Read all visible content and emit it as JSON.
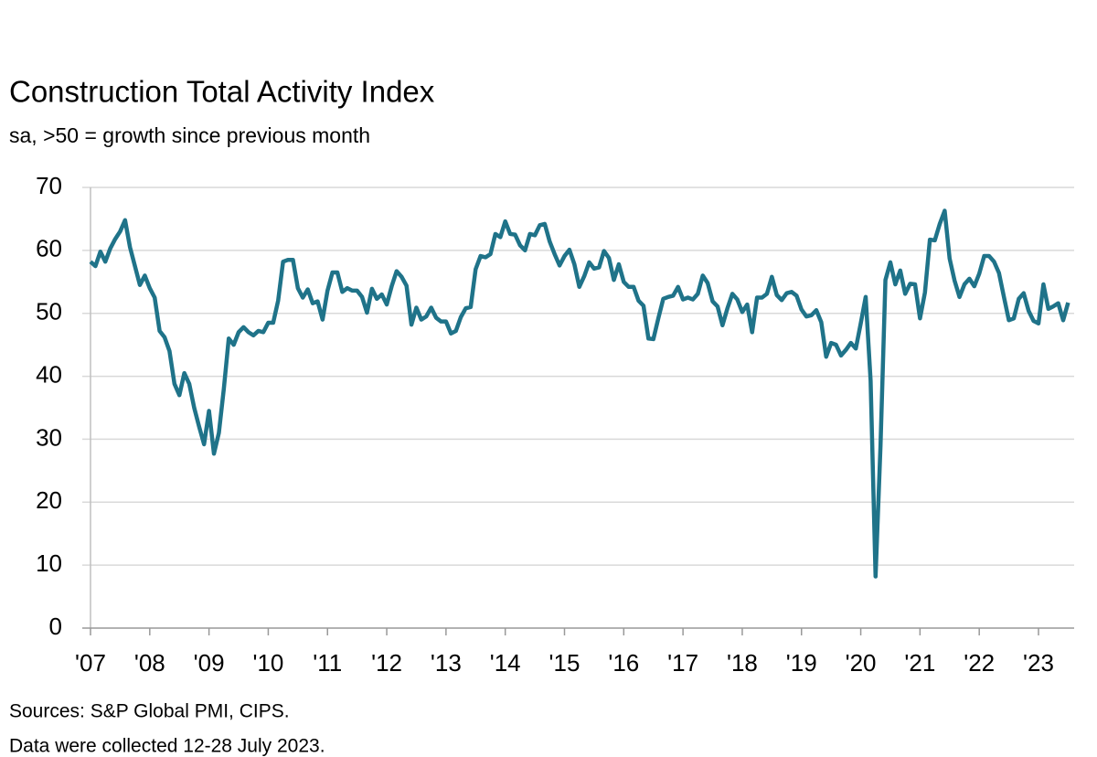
{
  "chart_data": {
    "type": "line",
    "title": "Construction Total Activity Index",
    "subtitle": "sa, >50 = growth since previous month",
    "notes": [
      "Sources: S&P Global PMI, CIPS.",
      "Data were collected 12-28 July 2023."
    ],
    "color": "#1f7389",
    "grid": true,
    "ylim": [
      0,
      70
    ],
    "yticks": [
      0,
      10,
      20,
      30,
      40,
      50,
      60,
      70
    ],
    "categories": [
      "'07",
      null,
      null,
      null,
      null,
      null,
      null,
      null,
      null,
      null,
      null,
      null,
      "'08",
      null,
      null,
      null,
      null,
      null,
      null,
      null,
      null,
      null,
      null,
      null,
      "'09",
      null,
      null,
      null,
      null,
      null,
      null,
      null,
      null,
      null,
      null,
      null,
      "'10",
      null,
      null,
      null,
      null,
      null,
      null,
      null,
      null,
      null,
      null,
      null,
      "'11",
      null,
      null,
      null,
      null,
      null,
      null,
      null,
      null,
      null,
      null,
      null,
      "'12",
      null,
      null,
      null,
      null,
      null,
      null,
      null,
      null,
      null,
      null,
      null,
      "'13",
      null,
      null,
      null,
      null,
      null,
      null,
      null,
      null,
      null,
      null,
      null,
      "'14",
      null,
      null,
      null,
      null,
      null,
      null,
      null,
      null,
      null,
      null,
      null,
      "'15",
      null,
      null,
      null,
      null,
      null,
      null,
      null,
      null,
      null,
      null,
      null,
      "'16",
      null,
      null,
      null,
      null,
      null,
      null,
      null,
      null,
      null,
      null,
      null,
      "'17",
      null,
      null,
      null,
      null,
      null,
      null,
      null,
      null,
      null,
      null,
      null,
      "'18",
      null,
      null,
      null,
      null,
      null,
      null,
      null,
      null,
      null,
      null,
      null,
      "'19",
      null,
      null,
      null,
      null,
      null,
      null,
      null,
      null,
      null,
      null,
      null,
      "'20",
      null,
      null,
      null,
      null,
      null,
      null,
      null,
      null,
      null,
      null,
      null,
      "'21",
      null,
      null,
      null,
      null,
      null,
      null,
      null,
      null,
      null,
      null,
      null,
      "'22",
      null,
      null,
      null,
      null,
      null,
      null,
      null,
      null,
      null,
      null,
      null,
      "'23",
      null,
      null,
      null,
      null,
      null,
      null
    ],
    "values": [
      58.2,
      57.5,
      59.8,
      58.2,
      60.3,
      61.8,
      63,
      64.8,
      60.5,
      57.5,
      54.5,
      56,
      54,
      52.5,
      47.2,
      46.2,
      44,
      38.8,
      37,
      40.5,
      38.8,
      35,
      32,
      29.2,
      34.5,
      27.7,
      31,
      38,
      46,
      45,
      47,
      47.8,
      47,
      46.5,
      47.2,
      47,
      48.5,
      48.5,
      52,
      58.2,
      58.5,
      58.5,
      54,
      52.5,
      53.8,
      51.6,
      51.9,
      49,
      53.6,
      56.5,
      56.5,
      53.4,
      54,
      53.6,
      53.6,
      52.6,
      50.1,
      53.9,
      52.3,
      53,
      51.4,
      54.3,
      56.7,
      55.8,
      54.4,
      48.2,
      50.9,
      49,
      49.5,
      50.9,
      49.3,
      48.7,
      48.7,
      46.8,
      47.2,
      49.4,
      50.8,
      51,
      57,
      59.1,
      58.9,
      59.4,
      62.6,
      62.1,
      64.6,
      62.6,
      62.5,
      60.8,
      60,
      62.6,
      62.4,
      64,
      64.2,
      61.4,
      59.4,
      57.6,
      59.1,
      60.1,
      57.8,
      54.2,
      55.9,
      58.1,
      57.1,
      57.3,
      59.9,
      58.8,
      55.3,
      57.8,
      55,
      54.2,
      54.2,
      52,
      51.2,
      46,
      45.9,
      49.2,
      52.3,
      52.6,
      52.8,
      54.2,
      52.2,
      52.5,
      52.2,
      53.1,
      56,
      54.8,
      51.9,
      51.1,
      48.1,
      50.8,
      53.1,
      52.2,
      50.2,
      51.4,
      47,
      52.5,
      52.5,
      53.1,
      55.8,
      52.9,
      52.1,
      53.2,
      53.4,
      52.8,
      50.6,
      49.5,
      49.7,
      50.5,
      48.6,
      43.1,
      45.3,
      45,
      43.3,
      44.2,
      45.3,
      44.4,
      48.4,
      52.6,
      39.3,
      8.2,
      28.9,
      55.3,
      58.1,
      54.6,
      56.8,
      53.1,
      54.7,
      54.6,
      49.2,
      53.3,
      61.7,
      61.6,
      64.2,
      66.3,
      58.7,
      55.2,
      52.6,
      54.6,
      55.5,
      54.3,
      56.3,
      59.1,
      59.1,
      58.2,
      56.4,
      52.6,
      48.9,
      49.2,
      52.3,
      53.2,
      50.4,
      48.8,
      48.4,
      54.6,
      50.7,
      51.1,
      51.6,
      48.9,
      51.7
    ]
  }
}
